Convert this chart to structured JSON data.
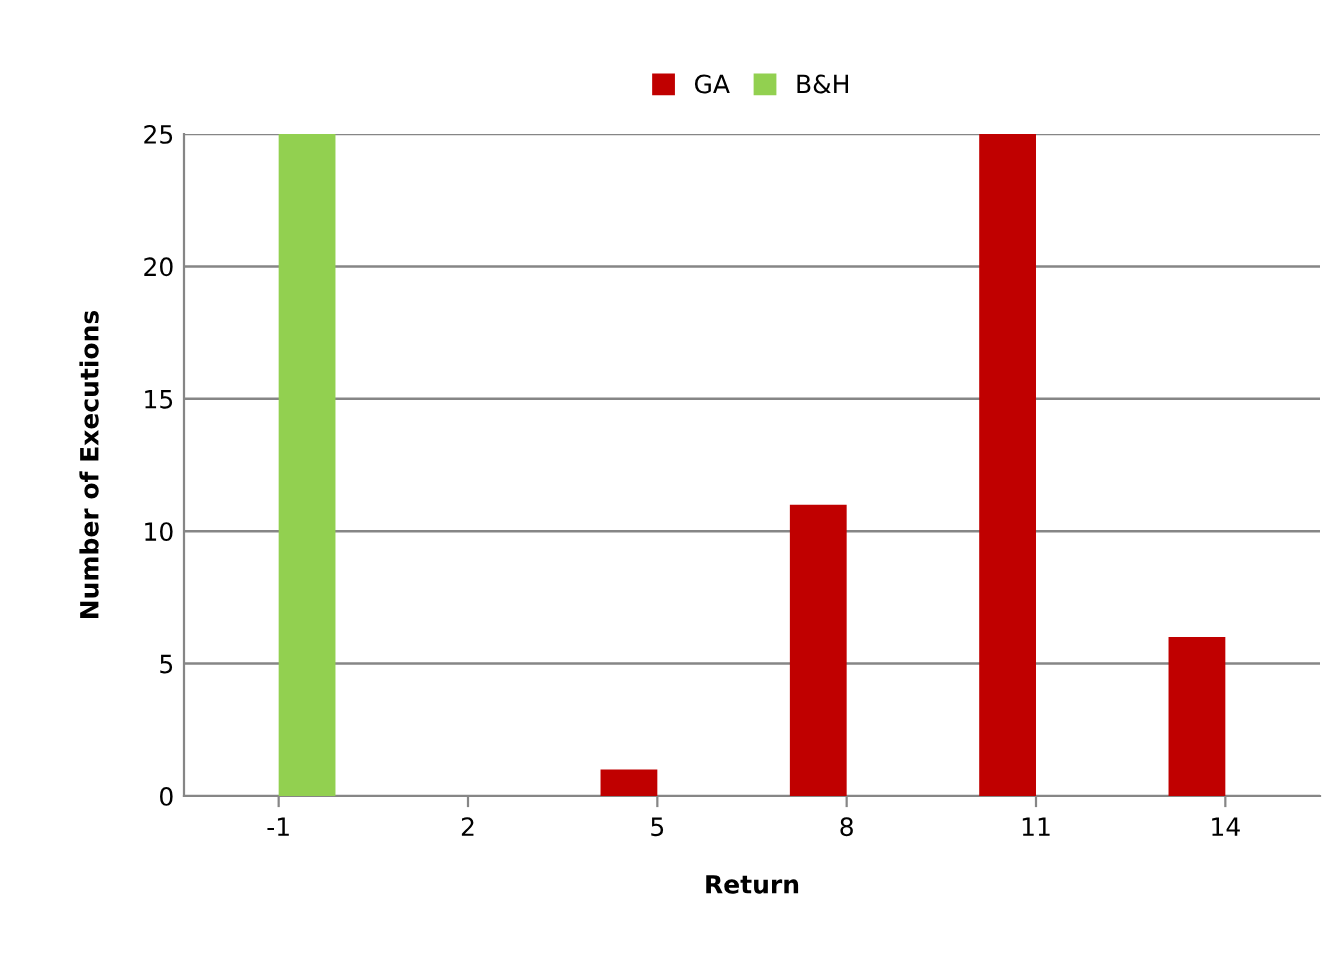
{
  "chart_data": {
    "type": "bar",
    "xlabel": "Return",
    "ylabel": "Number of Executions",
    "categories": [
      "-1",
      "2",
      "5",
      "8",
      "11",
      "14"
    ],
    "series": [
      {
        "name": "GA",
        "color": "#c00000",
        "values": [
          0,
          0,
          1,
          11,
          25,
          6
        ]
      },
      {
        "name": "B&H",
        "color": "#92d050",
        "values": [
          25,
          0,
          0,
          0,
          0,
          0
        ]
      }
    ],
    "ylim": [
      0,
      25
    ],
    "yticks": [
      0,
      5,
      10,
      15,
      20,
      25
    ],
    "grid": "y",
    "legend": "top"
  }
}
